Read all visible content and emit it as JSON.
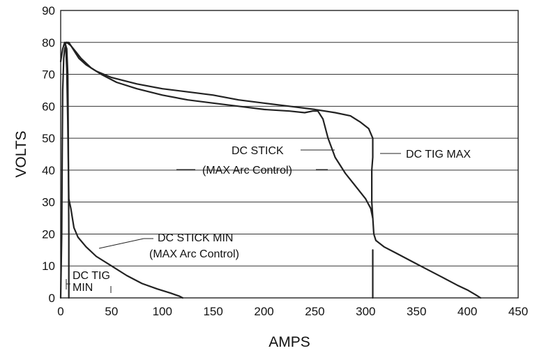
{
  "chart_data": {
    "type": "line",
    "xlabel": "AMPS",
    "ylabel": "VOLTS",
    "xlim": [
      0,
      450
    ],
    "ylim": [
      0,
      90
    ],
    "x_ticks": [
      "0",
      "50",
      "100",
      "150",
      "200",
      "250",
      "300",
      "350",
      "400",
      "450"
    ],
    "y_ticks": [
      "0",
      "10",
      "20",
      "30",
      "40",
      "50",
      "60",
      "70",
      "80",
      "90"
    ],
    "grid": "horizontal",
    "series": [
      {
        "name": "DC TIG MIN",
        "color": "#222222",
        "points": [
          [
            0,
            0
          ],
          [
            1,
            20
          ],
          [
            1.5,
            45
          ],
          [
            2,
            65
          ],
          [
            3,
            75
          ],
          [
            4,
            78
          ],
          [
            5,
            79
          ],
          [
            6,
            78
          ],
          [
            7,
            70
          ],
          [
            7.5,
            50
          ],
          [
            8,
            20
          ],
          [
            8,
            0
          ]
        ]
      },
      {
        "name": "DC STICK MIN (MAX Arc Control)",
        "color": "#222222",
        "points": [
          [
            0,
            74
          ],
          [
            2,
            78
          ],
          [
            4,
            80
          ],
          [
            5,
            79
          ],
          [
            6,
            72
          ],
          [
            7,
            55
          ],
          [
            8,
            31
          ],
          [
            10,
            28
          ],
          [
            13,
            22
          ],
          [
            17,
            19
          ],
          [
            25,
            16
          ],
          [
            35,
            13
          ],
          [
            50,
            10
          ],
          [
            65,
            7
          ],
          [
            80,
            4.5
          ],
          [
            95,
            2.8
          ],
          [
            108,
            1.5
          ],
          [
            117,
            0.5
          ],
          [
            120,
            0
          ]
        ]
      },
      {
        "name": "DC STICK (MAX Arc Control)",
        "color": "#222222",
        "points": [
          [
            3,
            79
          ],
          [
            6,
            80
          ],
          [
            10,
            79
          ],
          [
            15,
            77
          ],
          [
            20,
            75
          ],
          [
            30,
            72
          ],
          [
            40,
            70
          ],
          [
            55,
            67.5
          ],
          [
            75,
            65.5
          ],
          [
            100,
            63.5
          ],
          [
            125,
            62
          ],
          [
            150,
            61
          ],
          [
            175,
            60
          ],
          [
            200,
            59
          ],
          [
            225,
            58.5
          ],
          [
            240,
            58
          ],
          [
            248,
            58.5
          ],
          [
            253,
            58.5
          ],
          [
            258,
            56
          ],
          [
            263,
            50
          ],
          [
            270,
            44
          ],
          [
            280,
            39
          ],
          [
            290,
            35
          ],
          [
            300,
            31
          ],
          [
            305,
            28
          ],
          [
            307,
            25
          ]
        ]
      },
      {
        "name": "DC TIG MAX",
        "color": "#222222",
        "points": [
          [
            5,
            80
          ],
          [
            8,
            80
          ],
          [
            12,
            78
          ],
          [
            18,
            75
          ],
          [
            25,
            73
          ],
          [
            35,
            71
          ],
          [
            50,
            69
          ],
          [
            75,
            67
          ],
          [
            100,
            65.5
          ],
          [
            125,
            64.5
          ],
          [
            150,
            63.5
          ],
          [
            175,
            62
          ],
          [
            200,
            61
          ],
          [
            225,
            60
          ],
          [
            250,
            59
          ],
          [
            270,
            58
          ],
          [
            285,
            57
          ],
          [
            295,
            55
          ],
          [
            303,
            53
          ],
          [
            307,
            50
          ],
          [
            307,
            44
          ],
          [
            306,
            40
          ],
          [
            306,
            30
          ],
          [
            308,
            20
          ],
          [
            310,
            18
          ],
          [
            318,
            16
          ],
          [
            330,
            14
          ],
          [
            345,
            11.5
          ],
          [
            360,
            9
          ],
          [
            375,
            6.5
          ],
          [
            390,
            4
          ],
          [
            400,
            2.5
          ],
          [
            408,
            1
          ],
          [
            413,
            0
          ]
        ]
      },
      {
        "name": "DC TIG MAX vertical drop",
        "color": "#222222",
        "points": [
          [
            307,
            0
          ],
          [
            307,
            8
          ],
          [
            307,
            15
          ]
        ]
      }
    ],
    "annotations": [
      {
        "lines": [
          "DC STICK",
          "(MAX Arc Control)"
        ],
        "target": [
          270,
          46
        ],
        "target2": [
          253,
          40
        ]
      },
      {
        "text": "DC TIG MAX",
        "target": [
          308,
          45
        ]
      },
      {
        "lines": [
          "DC STICK MIN",
          "(MAX Arc Control)"
        ],
        "target": [
          35,
          15
        ]
      },
      {
        "lines": [
          "DC TIG",
          "MIN"
        ],
        "target": [
          8,
          8
        ]
      }
    ]
  }
}
